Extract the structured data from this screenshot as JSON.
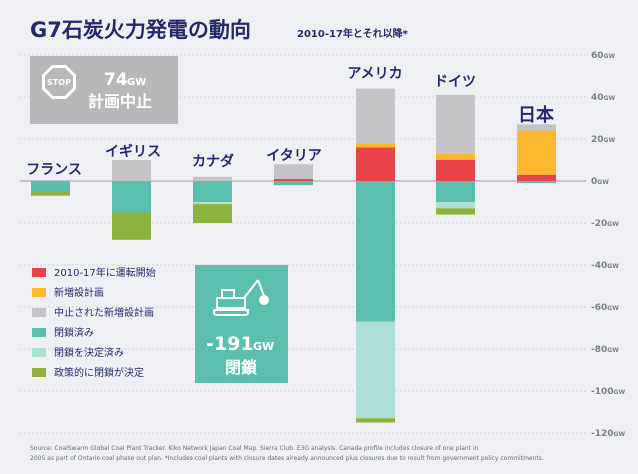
{
  "header": {
    "title": "G7石炭火力発電の動向",
    "subtitle": "2010-17年とそれ以降*"
  },
  "colors": {
    "background": "#eff0f3",
    "new_2010_17": "#e8434b",
    "new_planned": "#fdb82d",
    "cancelled": "#c4c4c6",
    "closed": "#5bbfae",
    "closure_decided": "#aedfd6",
    "policy_closure": "#8db23e",
    "text": "#25296b"
  },
  "stop_badge": {
    "icon": "stop-sign-icon",
    "sign_text": "STOP",
    "value": "74",
    "unit": "GW",
    "label": "計画中止"
  },
  "closed_badge": {
    "icon": "excavator-icon",
    "value": "-191",
    "unit": "GW",
    "label": "閉鎖"
  },
  "legend": [
    {
      "key": "new_2010_17",
      "label": "2010-17年に運転開始"
    },
    {
      "key": "new_planned",
      "label": "新増設計画"
    },
    {
      "key": "cancelled",
      "label": "中止された新増設計画"
    },
    {
      "key": "closed",
      "label": "閉鎖済み"
    },
    {
      "key": "closure_decided",
      "label": "閉鎖を決定済み"
    },
    {
      "key": "policy_closure",
      "label": "政策的に閉鎖が決定"
    }
  ],
  "chart_data": {
    "type": "bar",
    "stacked": true,
    "unit": "GW",
    "ylim": [
      -120,
      60
    ],
    "yticks": [
      60,
      40,
      20,
      0,
      -20,
      -40,
      -60,
      -80,
      -100,
      -120
    ],
    "grid": true,
    "categories": [
      "フランス",
      "イギリス",
      "カナダ",
      "イタリア",
      "アメリカ",
      "ドイツ",
      "日本"
    ],
    "positive_series": [
      {
        "key": "new_2010_17",
        "name": "2010-17年に運転開始",
        "values": [
          0,
          0,
          0,
          1,
          16,
          10,
          3
        ]
      },
      {
        "key": "new_planned",
        "name": "新増設計画",
        "values": [
          0,
          0,
          0,
          0,
          2,
          3,
          21
        ]
      },
      {
        "key": "cancelled",
        "name": "中止された新増設計画",
        "values": [
          0,
          10,
          2,
          7,
          26,
          28,
          3
        ]
      }
    ],
    "negative_series": [
      {
        "key": "closed",
        "name": "閉鎖済み",
        "values": [
          -5,
          -15,
          -10,
          -2,
          -67,
          -10,
          -1
        ]
      },
      {
        "key": "closure_decided",
        "name": "閉鎖を決定済み",
        "values": [
          0,
          0,
          -1,
          0,
          -46,
          -3,
          0
        ]
      },
      {
        "key": "policy_closure",
        "name": "政策的に閉鎖が決定",
        "values": [
          -2,
          -13,
          -9,
          0,
          -2,
          -3,
          0
        ]
      }
    ]
  },
  "source": {
    "line1": "Source: CoalSwarm Global Coal Plant Tracker. Kiko Network Japan Coal Map. Sierra Club. E3G analysis. Canada profile includes closure of one plant in",
    "line2": "2005 as part of Ontario coal phase out plan. *Includes coal plants with closure dates already announced plus closures due to result from government policy commitments."
  }
}
